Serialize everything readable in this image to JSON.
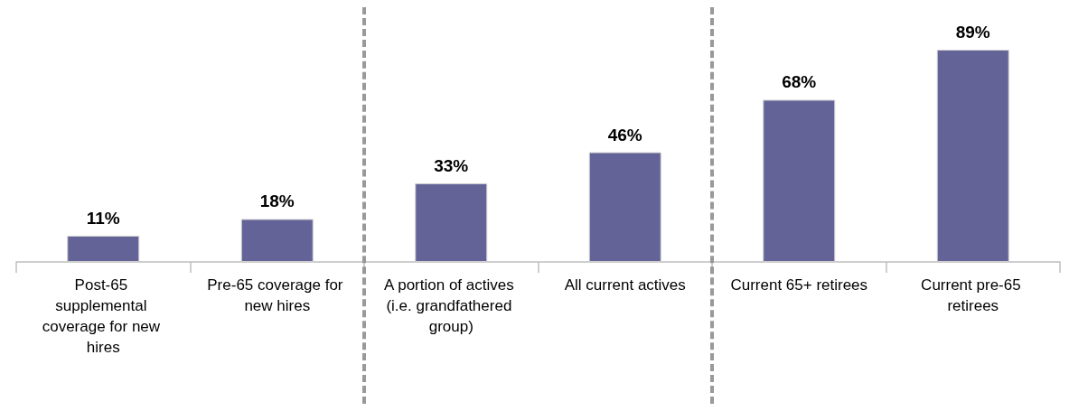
{
  "chart_data": {
    "type": "bar",
    "categories": [
      "Post-65 supplemental coverage for new hires",
      "Pre-65 coverage for new hires",
      "A portion of actives (i.e. grandfathered group)",
      "All current actives",
      "Current 65+ retirees",
      "Current pre-65 retirees"
    ],
    "values": [
      11,
      18,
      33,
      46,
      68,
      89
    ],
    "value_labels": [
      "11%",
      "18%",
      "33%",
      "46%",
      "68%",
      "89%"
    ],
    "color": "#636398"
  }
}
